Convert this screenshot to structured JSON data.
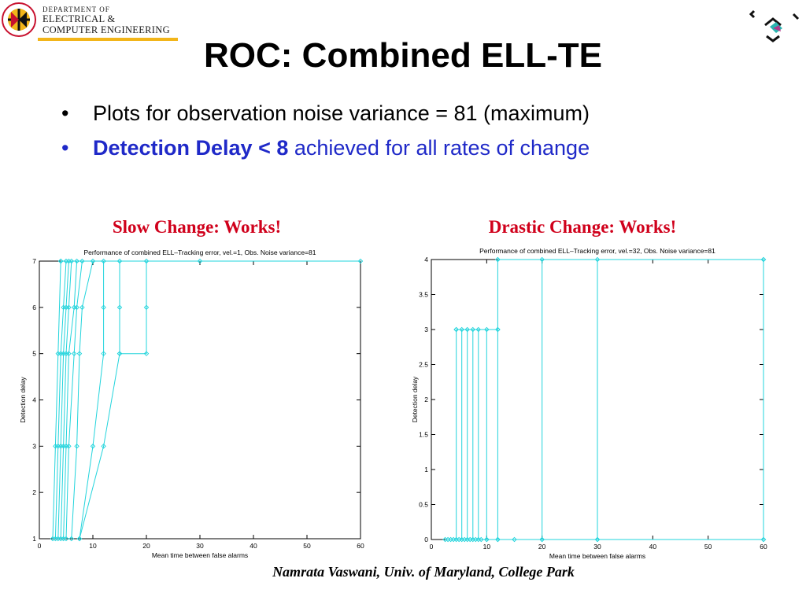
{
  "logo": {
    "line1": "DEPARTMENT OF",
    "line2": "ELECTRICAL &",
    "line3": "COMPUTER ENGINEERING"
  },
  "title": "ROC:  Combined ELL-TE",
  "bullets": [
    {
      "text": "Plots for observation noise variance = 81 (maximum)"
    },
    {
      "strong": "Detection Delay < 8",
      "rest": " achieved for all rates of change"
    }
  ],
  "bullet_symbol": "•",
  "colors": {
    "plot_line": "#22d4dc",
    "caption": "#d0001b",
    "bullet_highlight": "#1f29c8"
  },
  "captions": {
    "left": "Slow Change: Works!",
    "right": "Drastic Change: Works!"
  },
  "footer": "Namrata Vaswani, Univ. of Maryland, College Park",
  "chart_data": [
    {
      "type": "line",
      "title": "Performance of combined ELL–Tracking error, vel.=1, Obs. Noise variance=81",
      "xlabel": "Mean time between false alarms",
      "ylabel": "Detection delay",
      "xlim": [
        0,
        60
      ],
      "ylim": [
        1,
        7
      ],
      "xticks": [
        0,
        10,
        20,
        30,
        40,
        50,
        60
      ],
      "yticks": [
        1,
        2,
        3,
        4,
        5,
        6,
        7
      ],
      "grid": false,
      "series": [
        {
          "x": [
            2.5,
            3.0,
            3.5,
            4.0
          ],
          "y": [
            1,
            3,
            5,
            7
          ]
        },
        {
          "x": [
            3.0,
            3.5,
            4.0,
            4.5,
            5.0
          ],
          "y": [
            1,
            3,
            5,
            6,
            7
          ]
        },
        {
          "x": [
            3.5,
            4.0,
            4.5,
            5.0,
            5.5
          ],
          "y": [
            1,
            3,
            5,
            6,
            7
          ]
        },
        {
          "x": [
            4.0,
            4.5,
            5.0,
            5.5,
            6.0
          ],
          "y": [
            1,
            3,
            5,
            6,
            7
          ]
        },
        {
          "x": [
            4.5,
            5.0,
            5.5,
            6.5,
            7.0
          ],
          "y": [
            1,
            3,
            5,
            6,
            7
          ]
        },
        {
          "x": [
            5.0,
            5.5,
            6.5,
            7.0,
            8.0
          ],
          "y": [
            1,
            3,
            5,
            6,
            7
          ]
        },
        {
          "x": [
            6.0,
            7.0,
            7.5,
            8.0,
            10.0
          ],
          "y": [
            1,
            3,
            5,
            6,
            7
          ]
        },
        {
          "x": [
            7.5,
            10.0,
            12.0,
            12.0,
            12.0
          ],
          "y": [
            1,
            3,
            5,
            6,
            7
          ]
        },
        {
          "x": [
            7.5,
            12.0,
            15.0,
            15.0,
            15.0
          ],
          "y": [
            1,
            3,
            5,
            6,
            7
          ]
        },
        {
          "x": [
            15.0,
            20.0,
            20.0,
            20.0
          ],
          "y": [
            5,
            5,
            6,
            7
          ]
        },
        {
          "x": [
            4.0,
            30.0,
            60.0
          ],
          "y": [
            7,
            7,
            7
          ]
        }
      ]
    },
    {
      "type": "line",
      "title": "Performance of combined ELL–Tracking error, vel.=32, Obs. Noise variance=81",
      "xlabel": "Mean time between false alarms",
      "ylabel": "Detection delay",
      "xlim": [
        0,
        60
      ],
      "ylim": [
        0,
        4
      ],
      "xticks": [
        0,
        10,
        20,
        30,
        40,
        50,
        60
      ],
      "yticks": [
        0,
        0.5,
        1,
        1.5,
        2,
        2.5,
        3,
        3.5,
        4
      ],
      "grid": false,
      "series": [
        {
          "x": [
            4.5,
            4.5
          ],
          "y": [
            0,
            3
          ]
        },
        {
          "x": [
            5.5,
            5.5
          ],
          "y": [
            0,
            3
          ]
        },
        {
          "x": [
            6.5,
            6.5
          ],
          "y": [
            0,
            3
          ]
        },
        {
          "x": [
            7.5,
            7.5
          ],
          "y": [
            0,
            3
          ]
        },
        {
          "x": [
            8.5,
            8.5
          ],
          "y": [
            0,
            3
          ]
        },
        {
          "x": [
            10.0,
            10.0
          ],
          "y": [
            0,
            3
          ]
        },
        {
          "x": [
            12.0,
            12.0,
            12.0
          ],
          "y": [
            0,
            3,
            4
          ]
        },
        {
          "x": [
            20.0,
            20.0
          ],
          "y": [
            0,
            4
          ]
        },
        {
          "x": [
            30.0,
            30.0
          ],
          "y": [
            0,
            4
          ]
        },
        {
          "x": [
            60.0,
            60.0
          ],
          "y": [
            0,
            4
          ]
        },
        {
          "x": [
            2.5,
            3.0,
            3.5,
            4.0,
            5.0,
            6.0,
            7.0,
            8.0,
            9.0,
            10.0,
            12.0,
            15.0,
            20.0,
            30.0,
            60.0
          ],
          "y": [
            0,
            0,
            0,
            0,
            0,
            0,
            0,
            0,
            0,
            0,
            0,
            0,
            0,
            0,
            0
          ]
        },
        {
          "x": [
            4.5,
            12.0
          ],
          "y": [
            3,
            3
          ]
        },
        {
          "x": [
            12.0,
            60.0
          ],
          "y": [
            4,
            4
          ]
        }
      ]
    }
  ]
}
